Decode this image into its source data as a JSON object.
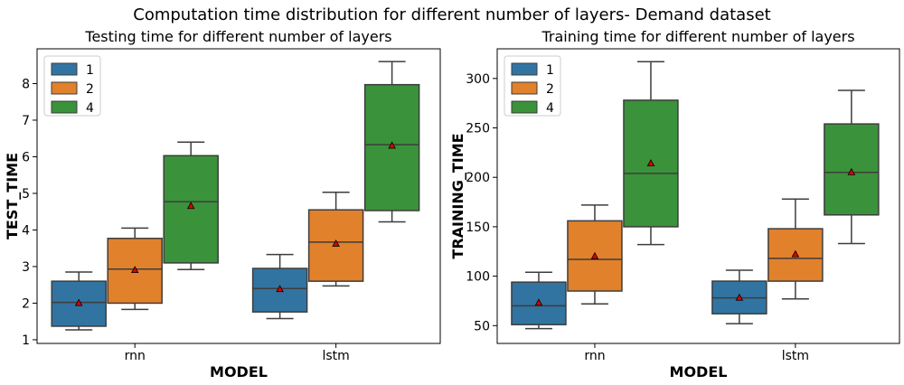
{
  "suptitle": "Computation time distribution for different number of layers- Demand dataset",
  "legend": {
    "title": "",
    "placement": "upper left"
  },
  "chart_data": [
    {
      "type": "box",
      "title": "Testing time for different number of layers",
      "xlabel": "MODEL",
      "ylabel": "TEST_TIME",
      "categories": [
        "rnn",
        "lstm"
      ],
      "ylim": [
        0.9,
        8.95
      ],
      "yticks": [
        1,
        2,
        3,
        4,
        5,
        6,
        7,
        8
      ],
      "grid": false,
      "legend_placement": "upper left",
      "series": [
        {
          "name": "1",
          "color": "#3274a1",
          "boxes": [
            {
              "category": "rnn",
              "whisker_low": 1.27,
              "q1": 1.37,
              "median": 2.02,
              "q3": 2.6,
              "whisker_high": 2.85,
              "mean": 2.0
            },
            {
              "category": "lstm",
              "whisker_low": 1.58,
              "q1": 1.76,
              "median": 2.4,
              "q3": 2.95,
              "whisker_high": 3.33,
              "mean": 2.38
            }
          ]
        },
        {
          "name": "2",
          "color": "#e1812c",
          "boxes": [
            {
              "category": "rnn",
              "whisker_low": 1.83,
              "q1": 2.0,
              "median": 2.93,
              "q3": 3.77,
              "whisker_high": 4.05,
              "mean": 2.9
            },
            {
              "category": "lstm",
              "whisker_low": 2.47,
              "q1": 2.6,
              "median": 3.67,
              "q3": 4.55,
              "whisker_high": 5.03,
              "mean": 3.62
            }
          ]
        },
        {
          "name": "4",
          "color": "#3a923a",
          "boxes": [
            {
              "category": "rnn",
              "whisker_low": 2.92,
              "q1": 3.1,
              "median": 4.77,
              "q3": 6.03,
              "whisker_high": 6.4,
              "mean": 4.65
            },
            {
              "category": "lstm",
              "whisker_low": 4.22,
              "q1": 4.53,
              "median": 6.33,
              "q3": 7.97,
              "whisker_high": 8.6,
              "mean": 6.3
            }
          ]
        }
      ]
    },
    {
      "type": "box",
      "title": "Training time for different number of layers",
      "xlabel": "MODEL",
      "ylabel": "TRAINING_TIME",
      "categories": [
        "rnn",
        "lstm"
      ],
      "ylim": [
        32,
        330
      ],
      "yticks": [
        50,
        100,
        150,
        200,
        250,
        300
      ],
      "grid": false,
      "legend_placement": "upper left",
      "series": [
        {
          "name": "1",
          "color": "#3274a1",
          "boxes": [
            {
              "category": "rnn",
              "whisker_low": 47,
              "q1": 51,
              "median": 70,
              "q3": 94,
              "whisker_high": 104,
              "mean": 73
            },
            {
              "category": "lstm",
              "whisker_low": 52,
              "q1": 62,
              "median": 78,
              "q3": 95,
              "whisker_high": 106,
              "mean": 78
            }
          ]
        },
        {
          "name": "2",
          "color": "#e1812c",
          "boxes": [
            {
              "category": "rnn",
              "whisker_low": 72,
              "q1": 85,
              "median": 117,
              "q3": 156,
              "whisker_high": 172,
              "mean": 120
            },
            {
              "category": "lstm",
              "whisker_low": 77,
              "q1": 95,
              "median": 118,
              "q3": 148,
              "whisker_high": 178,
              "mean": 122
            }
          ]
        },
        {
          "name": "4",
          "color": "#3a923a",
          "boxes": [
            {
              "category": "rnn",
              "whisker_low": 132,
              "q1": 150,
              "median": 204,
              "q3": 278,
              "whisker_high": 317,
              "mean": 214
            },
            {
              "category": "lstm",
              "whisker_low": 133,
              "q1": 162,
              "median": 205,
              "q3": 254,
              "whisker_high": 288,
              "mean": 205
            }
          ]
        }
      ]
    }
  ]
}
